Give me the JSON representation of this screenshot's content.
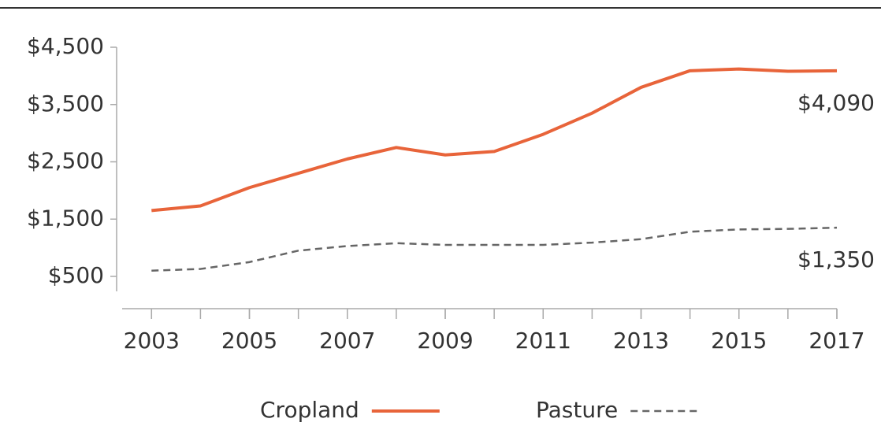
{
  "chart_data": {
    "type": "line",
    "x": [
      2003,
      2004,
      2005,
      2006,
      2007,
      2008,
      2009,
      2010,
      2011,
      2012,
      2013,
      2014,
      2015,
      2016,
      2017
    ],
    "series": [
      {
        "name": "Cropland",
        "color": "#e8643a",
        "dash": false,
        "values": [
          1650,
          1730,
          2050,
          2300,
          2550,
          2750,
          2620,
          2680,
          2980,
          3350,
          3800,
          4090,
          4120,
          4080,
          4090
        ]
      },
      {
        "name": "Pasture",
        "color": "#666666",
        "dash": true,
        "values": [
          600,
          630,
          750,
          950,
          1030,
          1080,
          1050,
          1050,
          1050,
          1090,
          1150,
          1280,
          1320,
          1330,
          1350
        ]
      }
    ],
    "annotations": [
      "$4,090",
      "$1,350"
    ],
    "xlim": [
      2002.4,
      2017
    ],
    "xticks": [
      2003,
      2005,
      2007,
      2009,
      2011,
      2013,
      2015,
      2017
    ],
    "ylim": [
      0,
      4500
    ],
    "yticks": [
      {
        "value": 500,
        "label": "$500"
      },
      {
        "value": 1500,
        "label": "$1,500"
      },
      {
        "value": 2500,
        "label": "$2,500"
      },
      {
        "value": 3500,
        "label": "$3,500"
      },
      {
        "value": 4500,
        "label": "$4,500"
      }
    ],
    "legend": "bottom"
  }
}
